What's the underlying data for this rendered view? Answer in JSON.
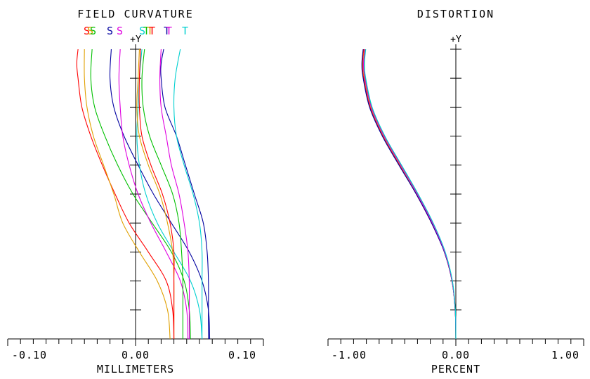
{
  "chart_data": [
    {
      "type": "line",
      "title": "FIELD CURVATURE",
      "xlabel": "MILLIMETERS",
      "ylabel": "+Y",
      "xlim": [
        -0.1,
        0.1
      ],
      "ylim": [
        0,
        1
      ],
      "x_tick_labels": [
        "-0.10",
        "0.00",
        "0.10"
      ],
      "legend": [
        {
          "label": "S",
          "color": "#ff0000"
        },
        {
          "label": "S",
          "color": "#e0a000"
        },
        {
          "label": "S",
          "color": "#00c000"
        },
        {
          "label": "S",
          "color": "#0000a0"
        },
        {
          "label": "S",
          "color": "#e000e0"
        },
        {
          "label": "S",
          "color": "#00d0d0"
        },
        {
          "label": "T",
          "color": "#00c000"
        },
        {
          "label": "T",
          "color": "#e0a000"
        },
        {
          "label": "T",
          "color": "#ff0000"
        },
        {
          "label": "T",
          "color": "#0000a0"
        },
        {
          "label": "T",
          "color": "#e000e0"
        },
        {
          "label": "T",
          "color": "#00d0d0"
        }
      ],
      "series": [
        {
          "color": "#ff0000",
          "points": [
            [
              0.03,
              0
            ],
            [
              0.029,
              0.1
            ],
            [
              0.024,
              0.2
            ],
            [
              0.01,
              0.3
            ],
            [
              -0.005,
              0.4
            ],
            [
              -0.016,
              0.5
            ],
            [
              -0.026,
              0.6
            ],
            [
              -0.035,
              0.7
            ],
            [
              -0.042,
              0.8
            ],
            [
              -0.045,
              0.9
            ],
            [
              -0.046,
              0.95
            ],
            [
              -0.045,
              1.0
            ]
          ]
        },
        {
          "color": "#e0a000",
          "points": [
            [
              0.027,
              0
            ],
            [
              0.025,
              0.1
            ],
            [
              0.017,
              0.2
            ],
            [
              0.003,
              0.3
            ],
            [
              -0.01,
              0.4
            ],
            [
              -0.017,
              0.5
            ],
            [
              -0.025,
              0.6
            ],
            [
              -0.033,
              0.7
            ],
            [
              -0.038,
              0.8
            ],
            [
              -0.04,
              0.9
            ],
            [
              -0.04,
              1.0
            ]
          ]
        },
        {
          "color": "#00c000",
          "points": [
            [
              0.043,
              0
            ],
            [
              0.042,
              0.1
            ],
            [
              0.038,
              0.2
            ],
            [
              0.028,
              0.3
            ],
            [
              0.013,
              0.4
            ],
            [
              -0.002,
              0.5
            ],
            [
              -0.014,
              0.6
            ],
            [
              -0.024,
              0.7
            ],
            [
              -0.032,
              0.8
            ],
            [
              -0.035,
              0.9
            ],
            [
              -0.034,
              1.0
            ]
          ]
        },
        {
          "color": "#0000a0",
          "points": [
            [
              0.058,
              0
            ],
            [
              0.057,
              0.1
            ],
            [
              0.052,
              0.2
            ],
            [
              0.042,
              0.3
            ],
            [
              0.028,
              0.4
            ],
            [
              0.014,
              0.5
            ],
            [
              0.002,
              0.6
            ],
            [
              -0.009,
              0.7
            ],
            [
              -0.017,
              0.8
            ],
            [
              -0.02,
              0.9
            ],
            [
              -0.019,
              1.0
            ]
          ]
        },
        {
          "color": "#e000e0",
          "points": [
            [
              0.041,
              0
            ],
            [
              0.04,
              0.1
            ],
            [
              0.035,
              0.2
            ],
            [
              0.024,
              0.3
            ],
            [
              0.012,
              0.4
            ],
            [
              0.002,
              0.5
            ],
            [
              -0.005,
              0.6
            ],
            [
              -0.01,
              0.7
            ],
            [
              -0.012,
              0.8
            ],
            [
              -0.013,
              0.9
            ],
            [
              -0.012,
              1.0
            ]
          ]
        },
        {
          "color": "#00d0d0",
          "points": [
            [
              0.052,
              0
            ],
            [
              0.05,
              0.1
            ],
            [
              0.043,
              0.2
            ],
            [
              0.03,
              0.3
            ],
            [
              0.017,
              0.4
            ],
            [
              0.008,
              0.5
            ],
            [
              0.003,
              0.6
            ],
            [
              0.001,
              0.7
            ],
            [
              0.002,
              0.8
            ],
            [
              0.003,
              0.9
            ],
            [
              0.005,
              1.0
            ]
          ]
        },
        {
          "color": "#00c000",
          "points": [
            [
              0.037,
              0
            ],
            [
              0.037,
              0.1
            ],
            [
              0.037,
              0.2
            ],
            [
              0.036,
              0.3
            ],
            [
              0.034,
              0.4
            ],
            [
              0.029,
              0.5
            ],
            [
              0.02,
              0.6
            ],
            [
              0.011,
              0.7
            ],
            [
              0.006,
              0.8
            ],
            [
              0.005,
              0.9
            ],
            [
              0.007,
              1.0
            ]
          ]
        },
        {
          "color": "#e0a000",
          "points": [
            [
              0.03,
              0
            ],
            [
              0.03,
              0.1
            ],
            [
              0.03,
              0.2
            ],
            [
              0.029,
              0.3
            ],
            [
              0.025,
              0.4
            ],
            [
              0.019,
              0.5
            ],
            [
              0.01,
              0.6
            ],
            [
              0.003,
              0.7
            ],
            [
              0.001,
              0.8
            ],
            [
              0.002,
              0.9
            ],
            [
              0.003,
              1.0
            ]
          ]
        },
        {
          "color": "#ff0000",
          "points": [
            [
              0.03,
              0
            ],
            [
              0.03,
              0.1
            ],
            [
              0.03,
              0.2
            ],
            [
              0.03,
              0.3
            ],
            [
              0.027,
              0.4
            ],
            [
              0.021,
              0.5
            ],
            [
              0.012,
              0.6
            ],
            [
              0.005,
              0.7
            ],
            [
              0.003,
              0.8
            ],
            [
              0.003,
              0.9
            ],
            [
              0.004,
              1.0
            ]
          ]
        },
        {
          "color": "#0000a0",
          "points": [
            [
              0.057,
              0
            ],
            [
              0.057,
              0.1
            ],
            [
              0.057,
              0.2
            ],
            [
              0.056,
              0.3
            ],
            [
              0.053,
              0.4
            ],
            [
              0.046,
              0.5
            ],
            [
              0.039,
              0.6
            ],
            [
              0.032,
              0.7
            ],
            [
              0.023,
              0.8
            ],
            [
              0.02,
              0.9
            ],
            [
              0.02,
              0.95
            ],
            [
              0.022,
              1.0
            ]
          ]
        },
        {
          "color": "#e000e0",
          "points": [
            [
              0.042,
              0
            ],
            [
              0.042,
              0.1
            ],
            [
              0.042,
              0.2
            ],
            [
              0.041,
              0.3
            ],
            [
              0.038,
              0.4
            ],
            [
              0.034,
              0.5
            ],
            [
              0.028,
              0.6
            ],
            [
              0.024,
              0.7
            ],
            [
              0.02,
              0.8
            ],
            [
              0.019,
              0.9
            ],
            [
              0.02,
              1.0
            ]
          ]
        },
        {
          "color": "#00d0d0",
          "points": [
            [
              0.052,
              0
            ],
            [
              0.052,
              0.1
            ],
            [
              0.052,
              0.2
            ],
            [
              0.052,
              0.3
            ],
            [
              0.05,
              0.4
            ],
            [
              0.045,
              0.5
            ],
            [
              0.038,
              0.6
            ],
            [
              0.032,
              0.7
            ],
            [
              0.03,
              0.8
            ],
            [
              0.031,
              0.9
            ],
            [
              0.035,
              1.0
            ]
          ]
        }
      ]
    },
    {
      "type": "line",
      "title": "DISTORTION",
      "xlabel": "PERCENT",
      "ylabel": "+Y",
      "xlim": [
        -1.0,
        1.0
      ],
      "ylim": [
        0,
        1
      ],
      "x_tick_labels": [
        "-1.00",
        "0.00",
        "1.00"
      ],
      "series": [
        {
          "color": "#ff0000",
          "points": [
            [
              0,
              0
            ],
            [
              -0.005,
              0.1
            ],
            [
              -0.03,
              0.2
            ],
            [
              -0.09,
              0.3
            ],
            [
              -0.19,
              0.4
            ],
            [
              -0.31,
              0.5
            ],
            [
              -0.44,
              0.6
            ],
            [
              -0.57,
              0.7
            ],
            [
              -0.67,
              0.8
            ],
            [
              -0.72,
              0.9
            ],
            [
              -0.73,
              0.95
            ],
            [
              -0.72,
              1.0
            ]
          ]
        },
        {
          "color": "#e0a000",
          "points": [
            [
              0,
              0
            ],
            [
              -0.005,
              0.1
            ],
            [
              -0.03,
              0.2
            ],
            [
              -0.09,
              0.3
            ],
            [
              -0.185,
              0.4
            ],
            [
              -0.305,
              0.5
            ],
            [
              -0.435,
              0.6
            ],
            [
              -0.565,
              0.7
            ],
            [
              -0.665,
              0.8
            ],
            [
              -0.715,
              0.9
            ],
            [
              -0.725,
              0.95
            ],
            [
              -0.715,
              1.0
            ]
          ]
        },
        {
          "color": "#00c000",
          "points": [
            [
              0,
              0
            ],
            [
              -0.005,
              0.1
            ],
            [
              -0.028,
              0.2
            ],
            [
              -0.085,
              0.3
            ],
            [
              -0.18,
              0.4
            ],
            [
              -0.3,
              0.5
            ],
            [
              -0.43,
              0.6
            ],
            [
              -0.56,
              0.7
            ],
            [
              -0.66,
              0.8
            ],
            [
              -0.71,
              0.9
            ],
            [
              -0.72,
              0.95
            ],
            [
              -0.71,
              1.0
            ]
          ]
        },
        {
          "color": "#0000a0",
          "points": [
            [
              0,
              0
            ],
            [
              -0.005,
              0.1
            ],
            [
              -0.03,
              0.2
            ],
            [
              -0.09,
              0.3
            ],
            [
              -0.19,
              0.4
            ],
            [
              -0.31,
              0.5
            ],
            [
              -0.445,
              0.6
            ],
            [
              -0.575,
              0.7
            ],
            [
              -0.675,
              0.8
            ],
            [
              -0.725,
              0.9
            ],
            [
              -0.735,
              0.95
            ],
            [
              -0.725,
              1.0
            ]
          ]
        },
        {
          "color": "#e000e0",
          "points": [
            [
              0,
              0
            ],
            [
              -0.005,
              0.1
            ],
            [
              -0.029,
              0.2
            ],
            [
              -0.087,
              0.3
            ],
            [
              -0.183,
              0.4
            ],
            [
              -0.302,
              0.5
            ],
            [
              -0.432,
              0.6
            ],
            [
              -0.562,
              0.7
            ],
            [
              -0.662,
              0.8
            ],
            [
              -0.712,
              0.9
            ],
            [
              -0.722,
              0.95
            ],
            [
              -0.712,
              1.0
            ]
          ]
        },
        {
          "color": "#00d0d0",
          "points": [
            [
              0,
              0
            ],
            [
              -0.004,
              0.1
            ],
            [
              -0.027,
              0.2
            ],
            [
              -0.083,
              0.3
            ],
            [
              -0.177,
              0.4
            ],
            [
              -0.295,
              0.5
            ],
            [
              -0.425,
              0.6
            ],
            [
              -0.555,
              0.7
            ],
            [
              -0.655,
              0.8
            ],
            [
              -0.705,
              0.9
            ],
            [
              -0.715,
              0.95
            ],
            [
              -0.705,
              1.0
            ]
          ]
        }
      ]
    }
  ]
}
